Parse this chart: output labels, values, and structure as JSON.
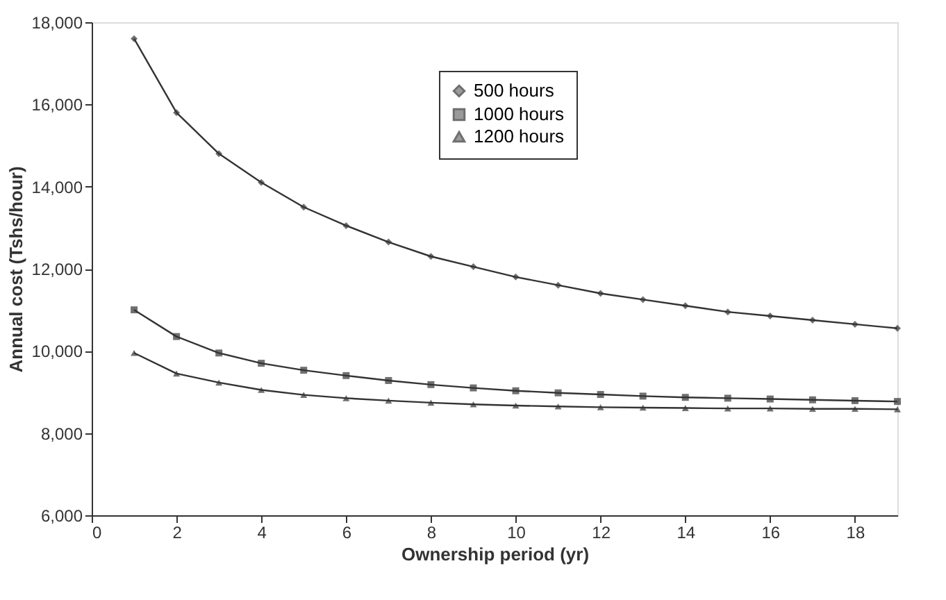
{
  "chart_data": {
    "type": "line",
    "xlabel": "Ownership period (yr)",
    "ylabel": "Annual cost (Tshs/hour)",
    "x": [
      1,
      2,
      3,
      4,
      5,
      6,
      7,
      8,
      9,
      10,
      11,
      12,
      13,
      14,
      15,
      16,
      17,
      18,
      19
    ],
    "series": [
      {
        "name": "500 hours",
        "color": "#333333",
        "marker": "diamond",
        "values": [
          17600,
          15800,
          14800,
          14100,
          13500,
          13050,
          12650,
          12300,
          12050,
          11800,
          11600,
          11400,
          11250,
          11100,
          10950,
          10850,
          10750,
          10650,
          10550
        ]
      },
      {
        "name": "1000 hours",
        "color": "#333333",
        "marker": "square",
        "values": [
          11000,
          10350,
          9950,
          9700,
          9530,
          9400,
          9280,
          9180,
          9100,
          9030,
          8980,
          8940,
          8900,
          8870,
          8850,
          8830,
          8810,
          8790,
          8770
        ]
      },
      {
        "name": "1200 hours",
        "color": "#333333",
        "marker": "triangle",
        "values": [
          9950,
          9450,
          9230,
          9050,
          8930,
          8850,
          8790,
          8740,
          8700,
          8670,
          8650,
          8630,
          8620,
          8610,
          8600,
          8600,
          8590,
          8590,
          8580
        ]
      }
    ],
    "xlim": [
      0,
      19
    ],
    "xticks": [
      0,
      2,
      4,
      6,
      8,
      10,
      12,
      14,
      16,
      18
    ],
    "ylim": [
      6000,
      18000
    ],
    "yticks": [
      {
        "value": 6000,
        "label": "6,000"
      },
      {
        "value": 8000,
        "label": "8,000"
      },
      {
        "value": 10000,
        "label": "10,000"
      },
      {
        "value": 12000,
        "label": "12,000"
      },
      {
        "value": 14000,
        "label": "14,000"
      },
      {
        "value": 16000,
        "label": "16,000"
      },
      {
        "value": 18000,
        "label": "18,000"
      }
    ],
    "grid": false,
    "legend": "top",
    "line_style": "solid"
  }
}
